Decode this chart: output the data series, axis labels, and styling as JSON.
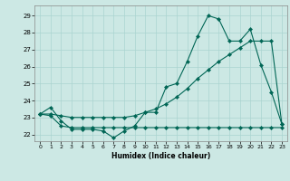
{
  "xlabel": "Humidex (Indice chaleur)",
  "bg_color": "#cce8e4",
  "grid_color": "#aad4d0",
  "line_color": "#006655",
  "xlim": [
    -0.5,
    23.5
  ],
  "ylim": [
    21.6,
    29.6
  ],
  "x_ticks": [
    0,
    1,
    2,
    3,
    4,
    5,
    6,
    7,
    8,
    9,
    10,
    11,
    12,
    13,
    14,
    15,
    16,
    17,
    18,
    19,
    20,
    21,
    22,
    23
  ],
  "y_ticks": [
    22,
    23,
    24,
    25,
    26,
    27,
    28,
    29
  ],
  "line1_x": [
    0,
    1,
    2,
    3,
    4,
    5,
    6,
    7,
    8,
    9,
    10,
    11,
    12,
    13,
    14,
    15,
    16,
    17,
    18,
    19,
    20,
    21,
    22,
    23
  ],
  "line1_y": [
    23.2,
    23.6,
    22.8,
    22.3,
    22.3,
    22.3,
    22.2,
    21.8,
    22.2,
    22.5,
    23.3,
    23.3,
    24.8,
    25.0,
    26.3,
    27.8,
    29.0,
    28.8,
    27.5,
    27.5,
    28.2,
    26.1,
    24.5,
    22.6
  ],
  "line2_x": [
    0,
    1,
    2,
    3,
    4,
    5,
    6,
    7,
    8,
    9,
    10,
    11,
    12,
    13,
    14,
    15,
    16,
    17,
    18,
    19,
    20,
    21,
    22,
    23
  ],
  "line2_y": [
    23.2,
    23.2,
    23.1,
    23.0,
    23.0,
    23.0,
    23.0,
    23.0,
    23.0,
    23.1,
    23.3,
    23.5,
    23.8,
    24.2,
    24.7,
    25.3,
    25.8,
    26.3,
    26.7,
    27.1,
    27.5,
    27.5,
    27.5,
    22.6
  ],
  "line3_x": [
    0,
    1,
    2,
    3,
    4,
    5,
    6,
    7,
    8,
    9,
    10,
    11,
    12,
    13,
    14,
    15,
    16,
    17,
    18,
    19,
    20,
    21,
    22,
    23
  ],
  "line3_y": [
    23.2,
    23.1,
    22.5,
    22.4,
    22.4,
    22.4,
    22.4,
    22.4,
    22.4,
    22.4,
    22.4,
    22.4,
    22.4,
    22.4,
    22.4,
    22.4,
    22.4,
    22.4,
    22.4,
    22.4,
    22.4,
    22.4,
    22.4,
    22.4
  ]
}
